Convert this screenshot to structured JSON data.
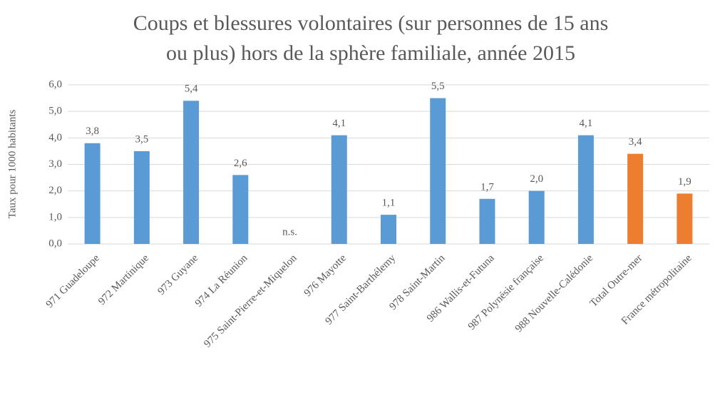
{
  "chart_data": {
    "type": "bar",
    "title": [
      "Coups et blessures volontaires (sur personnes de 15 ans",
      "ou plus) hors de la sphère familiale, année 2015"
    ],
    "y_label": "Taux pour 1000 habitants",
    "categories": [
      "971 Guadeloupe",
      "972 Martinique",
      "973 Guyane",
      "974 La Réunion",
      "975 Saint-Pierre-et-Miquelon",
      "976 Mayotte",
      "977 Saint-Barthélemy",
      "978 Saint-Martin",
      "986 Wallis-et-Futuna",
      "987 Polynésie française",
      "988 Nouvelle-Calédonie",
      "Total Outre-mer",
      "France métropolitaine"
    ],
    "values": [
      3.8,
      3.5,
      5.4,
      2.6,
      null,
      4.1,
      1.1,
      5.5,
      1.7,
      2.0,
      4.1,
      3.4,
      1.9
    ],
    "value_labels": [
      "3,8",
      "3,5",
      "5,4",
      "2,6",
      "n.s.",
      "4,1",
      "1,1",
      "5,5",
      "1,7",
      "2,0",
      "4,1",
      "3,4",
      "1,9"
    ],
    "colors": [
      "#5b9bd5",
      "#5b9bd5",
      "#5b9bd5",
      "#5b9bd5",
      "#5b9bd5",
      "#5b9bd5",
      "#5b9bd5",
      "#5b9bd5",
      "#5b9bd5",
      "#5b9bd5",
      "#5b9bd5",
      "#ed7d31",
      "#ed7d31"
    ],
    "ylim": [
      0,
      6
    ],
    "yticks": [
      {
        "value": 0,
        "label": "0,0"
      },
      {
        "value": 1,
        "label": "1,0"
      },
      {
        "value": 2,
        "label": "2,0"
      },
      {
        "value": 3,
        "label": "3,0"
      },
      {
        "value": 4,
        "label": "4,0"
      },
      {
        "value": 5,
        "label": "5,0"
      },
      {
        "value": 6,
        "label": "6,0"
      }
    ],
    "grid": true
  }
}
